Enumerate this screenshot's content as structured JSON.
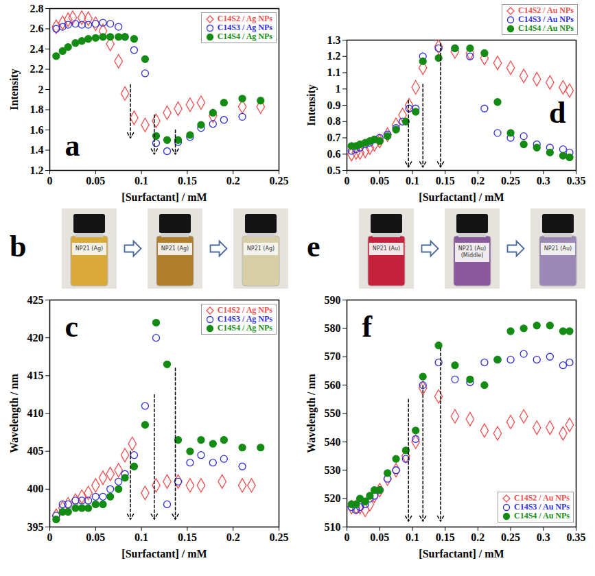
{
  "chart_data": [
    {
      "type": "scatter",
      "panel_label": "a",
      "x_label": "[Surfactant] / mM",
      "y_label": "Intensity",
      "xlim": [
        0,
        0.25
      ],
      "xticks": [
        0,
        0.05,
        0.1,
        0.15,
        0.2,
        0.25
      ],
      "ylim": [
        1.2,
        2.8
      ],
      "yticks": [
        1.2,
        1.4,
        1.6,
        1.8,
        2,
        2.2,
        2.4,
        2.6,
        2.8
      ],
      "grid": false,
      "legend": "top-right",
      "series": [
        {
          "name": "C14S2 / Ag NPs",
          "color": "#f05050",
          "marker": "open-diamond",
          "x": [
            0.007,
            0.014,
            0.02,
            0.025,
            0.035,
            0.042,
            0.05,
            0.058,
            0.066,
            0.075,
            0.082,
            0.092,
            0.104,
            0.116,
            0.128,
            0.14,
            0.153,
            0.165,
            0.178,
            0.21,
            0.23
          ],
          "values": [
            2.62,
            2.66,
            2.69,
            2.71,
            2.71,
            2.7,
            2.65,
            2.58,
            2.45,
            2.28,
            1.96,
            1.72,
            1.65,
            1.69,
            1.77,
            1.81,
            1.85,
            1.87,
            1.74,
            1.83,
            1.83
          ]
        },
        {
          "name": "C14S3 / Ag NPs",
          "color": "#3030e0",
          "marker": "open-circle",
          "x": [
            0.007,
            0.014,
            0.02,
            0.028,
            0.035,
            0.042,
            0.05,
            0.058,
            0.066,
            0.075,
            0.082,
            0.092,
            0.104,
            0.116,
            0.128,
            0.14,
            0.153,
            0.165,
            0.178,
            0.19,
            0.21
          ],
          "values": [
            2.6,
            2.62,
            2.64,
            2.65,
            2.64,
            2.64,
            2.65,
            2.66,
            2.65,
            2.62,
            2.52,
            2.39,
            2.16,
            1.47,
            1.39,
            1.48,
            1.53,
            1.62,
            1.66,
            1.7,
            1.73
          ]
        },
        {
          "name": "C14S4 / Ag NPs",
          "color": "#148c14",
          "marker": "circle",
          "x": [
            0.007,
            0.014,
            0.02,
            0.028,
            0.035,
            0.042,
            0.05,
            0.058,
            0.066,
            0.075,
            0.082,
            0.092,
            0.104,
            0.116,
            0.128,
            0.14,
            0.153,
            0.165,
            0.178,
            0.19,
            0.21,
            0.23
          ],
          "values": [
            2.33,
            2.38,
            2.42,
            2.46,
            2.48,
            2.5,
            2.51,
            2.52,
            2.52,
            2.52,
            2.52,
            2.5,
            2.3,
            1.54,
            1.5,
            1.5,
            1.55,
            1.65,
            1.77,
            1.87,
            1.91,
            1.89
          ]
        }
      ],
      "arrows": [
        {
          "x": 0.088,
          "y_from": 2.05,
          "y_to": 1.52
        },
        {
          "x": 0.114,
          "y_from": 1.75,
          "y_to": 1.36
        },
        {
          "x": 0.137,
          "y_from": 1.6,
          "y_to": 1.36
        }
      ]
    },
    {
      "type": "scatter",
      "panel_label": "c",
      "x_label": "[Surfactant] / mM",
      "y_label": "Wavelength / nm",
      "xlim": [
        0,
        0.25
      ],
      "xticks": [
        0,
        0.05,
        0.1,
        0.15,
        0.2,
        0.25
      ],
      "ylim": [
        395,
        425
      ],
      "yticks": [
        395,
        400,
        405,
        410,
        415,
        420,
        425
      ],
      "grid": false,
      "legend": "top-right",
      "series": [
        {
          "name": "C14S2 / Ag NPs",
          "color": "#f05050",
          "marker": "open-diamond",
          "x": [
            0.007,
            0.014,
            0.02,
            0.028,
            0.035,
            0.042,
            0.05,
            0.058,
            0.066,
            0.075,
            0.082,
            0.09,
            0.104,
            0.116,
            0.128,
            0.14,
            0.153,
            0.165,
            0.188,
            0.21,
            0.22
          ],
          "values": [
            396.5,
            397.5,
            398,
            398.5,
            399,
            399.5,
            400.5,
            401.5,
            402,
            402.5,
            404.5,
            406,
            399.5,
            400.5,
            401,
            401,
            400.5,
            400.5,
            401,
            400.5,
            400.5
          ]
        },
        {
          "name": "C14S3 / Ag NPs",
          "color": "#3030e0",
          "marker": "open-circle",
          "x": [
            0.007,
            0.014,
            0.02,
            0.028,
            0.035,
            0.042,
            0.05,
            0.058,
            0.066,
            0.075,
            0.082,
            0.092,
            0.104,
            0.116,
            0.128,
            0.14,
            0.153,
            0.165,
            0.178,
            0.19,
            0.21
          ],
          "values": [
            396.5,
            398,
            398,
            398.5,
            398.5,
            398.5,
            399,
            399,
            400,
            401,
            402,
            404.5,
            411,
            420,
            398,
            401,
            403.5,
            404.5,
            403.5,
            404,
            403
          ]
        },
        {
          "name": "C14S4 / Ag NPs",
          "color": "#148c14",
          "marker": "circle",
          "x": [
            0.007,
            0.014,
            0.02,
            0.028,
            0.035,
            0.042,
            0.05,
            0.058,
            0.066,
            0.075,
            0.082,
            0.092,
            0.104,
            0.116,
            0.128,
            0.14,
            0.153,
            0.165,
            0.178,
            0.19,
            0.21,
            0.23
          ],
          "values": [
            396,
            397,
            397,
            397.5,
            397.5,
            397.5,
            398,
            398,
            399,
            400,
            401.5,
            403,
            408.5,
            422,
            416.5,
            406.5,
            405,
            406.5,
            406,
            406.5,
            405.5,
            405.5
          ]
        }
      ],
      "arrows": [
        {
          "x": 0.088,
          "y_from": 405,
          "y_to": 396
        },
        {
          "x": 0.114,
          "y_from": 412.5,
          "y_to": 396
        },
        {
          "x": 0.137,
          "y_from": 416,
          "y_to": 396
        }
      ]
    },
    {
      "type": "scatter",
      "panel_label": "d",
      "x_label": "[Surfactant] / mM",
      "y_label": "Intensity",
      "xlim": [
        0,
        0.35
      ],
      "xticks": [
        0,
        0.05,
        0.1,
        0.15,
        0.2,
        0.25,
        0.3,
        0.35
      ],
      "ylim": [
        0.5,
        1.3
      ],
      "yticks": [
        0.5,
        0.6,
        0.7,
        0.8,
        0.9,
        1,
        1.1,
        1.2,
        1.3
      ],
      "grid": false,
      "legend": "outside-top-right",
      "series": [
        {
          "name": "C14S2 / Au NPs",
          "color": "#f05050",
          "marker": "open-diamond",
          "x": [
            0.007,
            0.014,
            0.02,
            0.028,
            0.035,
            0.042,
            0.05,
            0.062,
            0.075,
            0.085,
            0.095,
            0.105,
            0.116,
            0.14,
            0.165,
            0.188,
            0.21,
            0.23,
            0.25,
            0.27,
            0.29,
            0.31,
            0.33,
            0.34
          ],
          "values": [
            0.6,
            0.61,
            0.61,
            0.62,
            0.64,
            0.66,
            0.68,
            0.72,
            0.78,
            0.84,
            0.9,
            1.01,
            1.13,
            1.26,
            1.23,
            1.22,
            1.19,
            1.16,
            1.13,
            1.08,
            1.06,
            1.04,
            1.01,
            0.99
          ]
        },
        {
          "name": "C14S3 / Au NPs",
          "color": "#3030e0",
          "marker": "open-circle",
          "x": [
            0.007,
            0.014,
            0.02,
            0.028,
            0.035,
            0.042,
            0.05,
            0.062,
            0.075,
            0.085,
            0.095,
            0.105,
            0.116,
            0.14,
            0.165,
            0.188,
            0.21,
            0.23,
            0.25,
            0.27,
            0.29,
            0.31,
            0.33,
            0.34
          ],
          "values": [
            0.62,
            0.63,
            0.64,
            0.66,
            0.67,
            0.69,
            0.7,
            0.72,
            0.76,
            0.8,
            0.88,
            0.88,
            1.2,
            1.25,
            1.25,
            1.2,
            0.88,
            0.73,
            0.7,
            0.71,
            0.66,
            0.64,
            0.63,
            0.61
          ]
        },
        {
          "name": "C14S4 / Au NPs",
          "color": "#148c14",
          "marker": "circle",
          "x": [
            0.007,
            0.014,
            0.02,
            0.028,
            0.035,
            0.042,
            0.05,
            0.062,
            0.075,
            0.09,
            0.105,
            0.116,
            0.14,
            0.165,
            0.188,
            0.21,
            0.23,
            0.25,
            0.27,
            0.29,
            0.31,
            0.33,
            0.34
          ],
          "values": [
            0.65,
            0.65,
            0.66,
            0.67,
            0.68,
            0.69,
            0.68,
            0.71,
            0.75,
            0.8,
            0.86,
            1.17,
            1.19,
            1.25,
            1.25,
            1.22,
            0.92,
            0.73,
            0.66,
            0.64,
            0.61,
            0.59,
            0.58
          ]
        }
      ],
      "arrows": [
        {
          "x": 0.094,
          "y_from": 0.93,
          "y_to": 0.52
        },
        {
          "x": 0.116,
          "y_from": 1.03,
          "y_to": 0.52
        },
        {
          "x": 0.143,
          "y_from": 1.28,
          "y_to": 0.52
        }
      ]
    },
    {
      "type": "scatter",
      "panel_label": "f",
      "x_label": "[Surfactant] / mM",
      "y_label": "Wavelength / nm",
      "xlim": [
        0,
        0.35
      ],
      "xticks": [
        0,
        0.05,
        0.1,
        0.15,
        0.2,
        0.25,
        0.3,
        0.35
      ],
      "ylim": [
        510,
        590
      ],
      "yticks": [
        510,
        520,
        530,
        540,
        550,
        560,
        570,
        580,
        590
      ],
      "grid": false,
      "legend": "bottom-right",
      "series": [
        {
          "name": "C14S2 / Au NPs",
          "color": "#f05050",
          "marker": "open-diamond",
          "x": [
            0.007,
            0.014,
            0.02,
            0.028,
            0.035,
            0.042,
            0.05,
            0.062,
            0.075,
            0.09,
            0.105,
            0.116,
            0.14,
            0.165,
            0.188,
            0.21,
            0.23,
            0.25,
            0.27,
            0.29,
            0.31,
            0.33,
            0.34
          ],
          "values": [
            517,
            517,
            517,
            516,
            518,
            521,
            523,
            527,
            530,
            535,
            540,
            559,
            556,
            549,
            548,
            544,
            543,
            547,
            549,
            545,
            545,
            543,
            546
          ]
        },
        {
          "name": "C14S3 / Au NPs",
          "color": "#3030e0",
          "marker": "open-circle",
          "x": [
            0.007,
            0.014,
            0.02,
            0.028,
            0.035,
            0.042,
            0.05,
            0.062,
            0.075,
            0.09,
            0.105,
            0.116,
            0.14,
            0.165,
            0.188,
            0.21,
            0.23,
            0.25,
            0.27,
            0.29,
            0.31,
            0.33,
            0.34
          ],
          "values": [
            517,
            516,
            517,
            518,
            520,
            521,
            523,
            527,
            530,
            534,
            541,
            560,
            568,
            562,
            561,
            568,
            569,
            569,
            571,
            569,
            570,
            567,
            568
          ]
        },
        {
          "name": "C14S4 / Au NPs",
          "color": "#148c14",
          "marker": "circle",
          "x": [
            0.007,
            0.014,
            0.02,
            0.028,
            0.035,
            0.042,
            0.05,
            0.062,
            0.075,
            0.09,
            0.105,
            0.116,
            0.14,
            0.165,
            0.188,
            0.21,
            0.23,
            0.25,
            0.27,
            0.29,
            0.31,
            0.33,
            0.34
          ],
          "values": [
            518,
            518,
            520,
            519,
            521,
            523,
            523,
            529,
            534,
            537,
            544,
            563,
            574,
            567,
            562,
            560,
            569,
            579,
            580,
            581,
            581,
            579,
            579
          ]
        }
      ],
      "arrows": [
        {
          "x": 0.094,
          "y_from": 555,
          "y_to": 512
        },
        {
          "x": 0.116,
          "y_from": 560,
          "y_to": 512
        },
        {
          "x": 0.143,
          "y_from": 573,
          "y_to": 512
        }
      ]
    }
  ],
  "photos": [
    {
      "panel_label": "b",
      "vials": [
        {
          "label": [
            "NP21 (Ag)"
          ],
          "color": "#d9a93a"
        },
        {
          "label": [
            "NP21 (Ag)"
          ],
          "color": "#b07f2c"
        },
        {
          "label": [
            "NP21 (Ag)"
          ],
          "color": "#d9cfa6"
        }
      ]
    },
    {
      "panel_label": "e",
      "vials": [
        {
          "label": [
            "NP21 (Au)"
          ],
          "color": "#c4223c"
        },
        {
          "label": [
            "NP21 (Au)",
            "(Middle)"
          ],
          "color": "#8a5a9c"
        },
        {
          "label": [
            "NP21 (Au)"
          ],
          "color": "#9c88b4"
        }
      ]
    }
  ]
}
